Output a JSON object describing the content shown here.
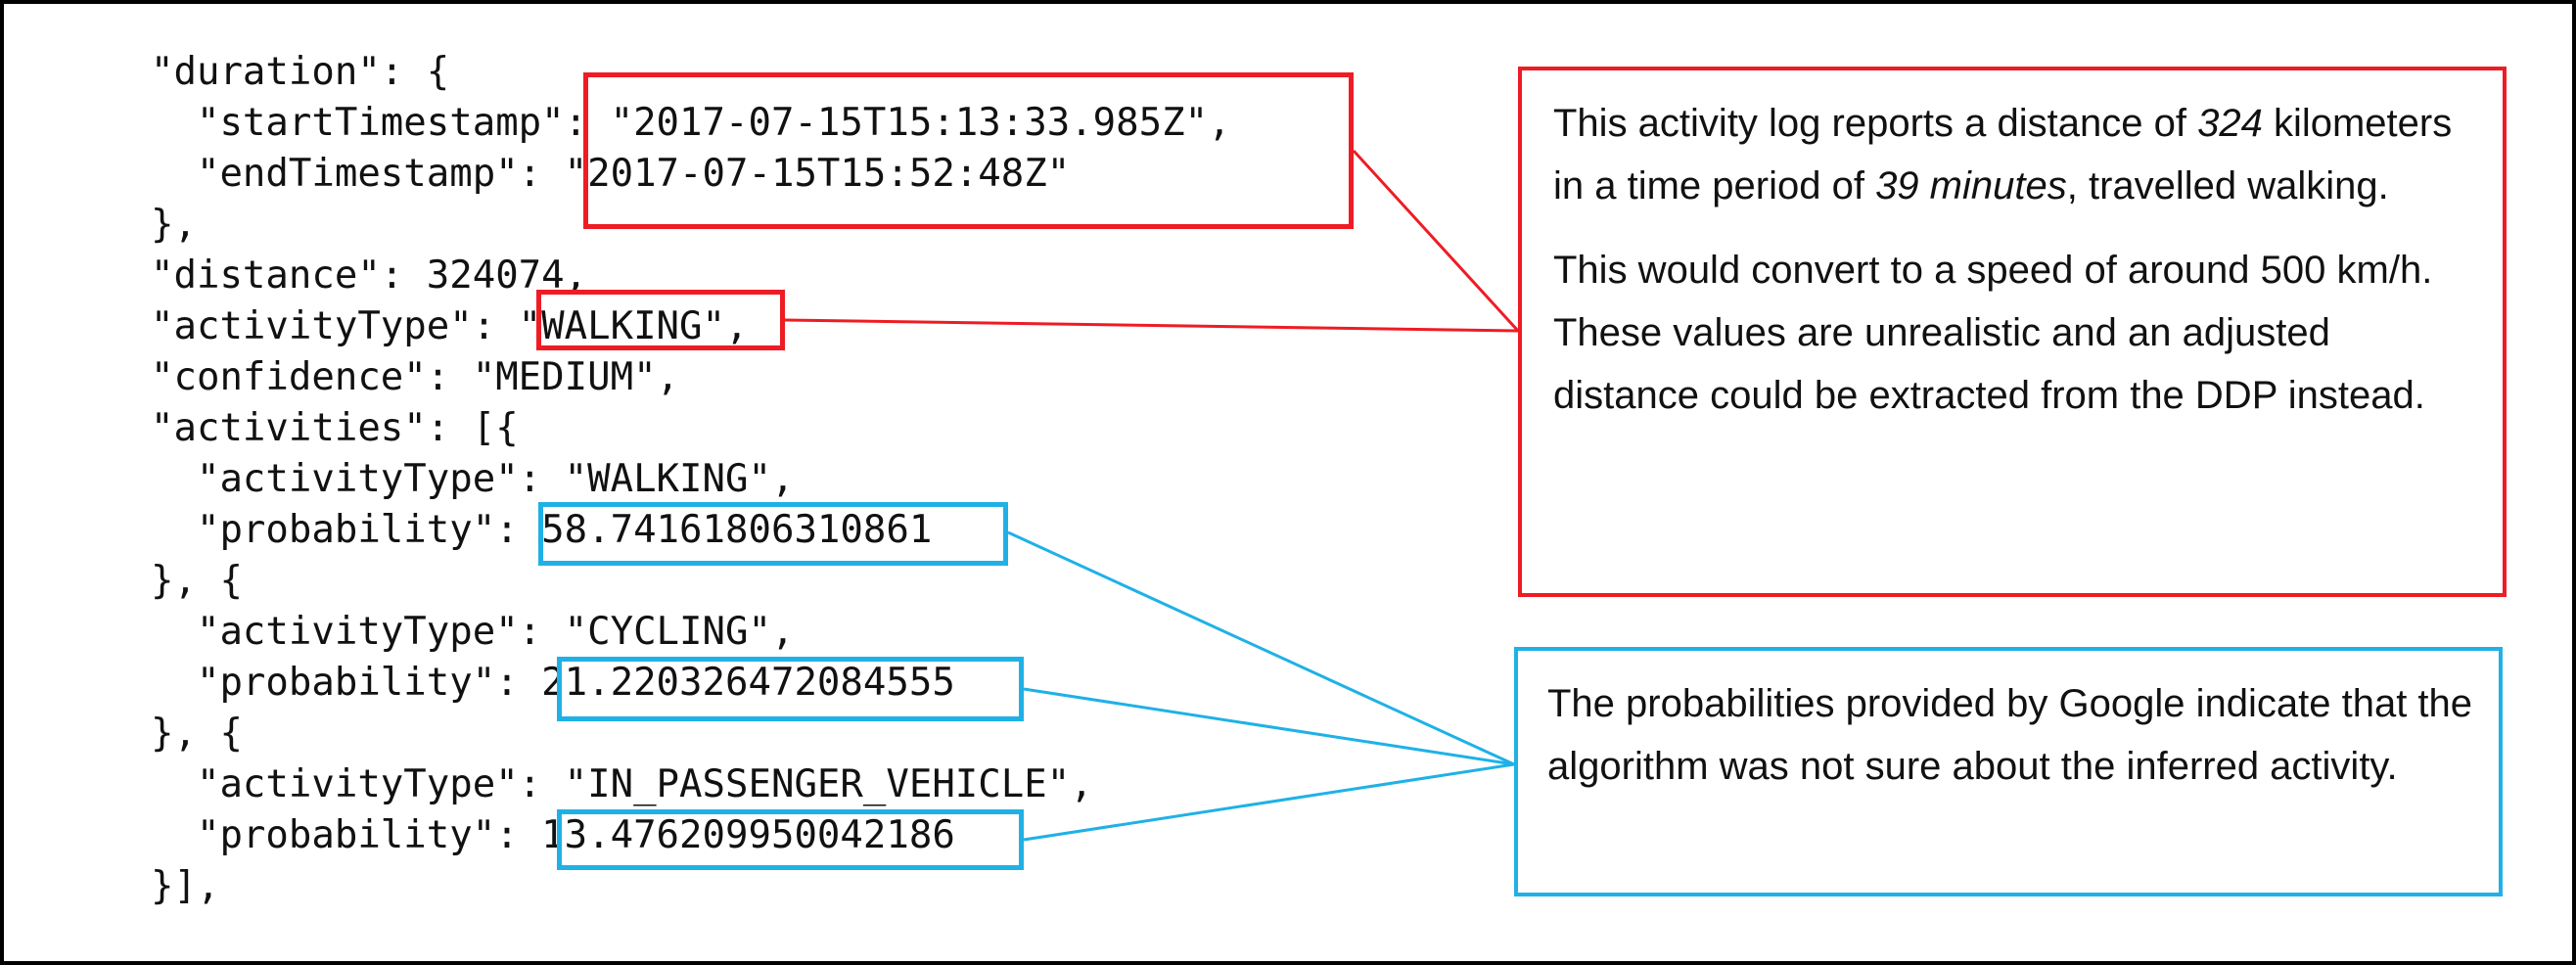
{
  "code_lines": [
    "\"duration\": {",
    "  \"startTimestamp\": \"2017-07-15T15:13:33.985Z\",",
    "  \"endTimestamp\": \"2017-07-15T15:52:48Z\"",
    "},",
    "\"distance\": 324074,",
    "\"activityType\": \"WALKING\",",
    "\"confidence\": \"MEDIUM\",",
    "\"activities\": [{",
    "  \"activityType\": \"WALKING\",",
    "  \"probability\": 58.74161806310861",
    "}, {",
    "  \"activityType\": \"CYCLING\",",
    "  \"probability\": 21.220326472084555",
    "}, {",
    "  \"activityType\": \"IN_PASSENGER_VEHICLE\",",
    "  \"probability\": 13.476209950042186",
    "}],"
  ],
  "notes": {
    "distance_note": {
      "p1_a": "This activity log reports a distance of ",
      "p1_b": "324",
      "p1_c": " kilometers in a time period of ",
      "p1_d": "39 minutes",
      "p1_e": ", travelled walking.",
      "p2": "This would convert to a speed of around 500 km/h. These values are unrealistic and an adjusted distance could be extracted from the DDP instead."
    },
    "probability_note": {
      "text": "The probabilities provided by Google indicate that the algorithm was not sure about the inferred activity."
    }
  },
  "colors": {
    "red": "#ee1c24",
    "blue": "#1fb1e6"
  }
}
